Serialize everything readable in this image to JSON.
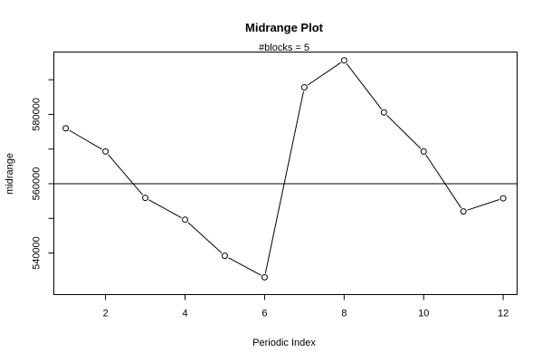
{
  "chart_data": {
    "type": "line",
    "title": "Midrange Plot",
    "subtitle": "#blocks =  5",
    "xlabel": "Periodic Index",
    "ylabel": "midrange",
    "x": [
      1,
      2,
      3,
      4,
      5,
      6,
      7,
      8,
      9,
      10,
      11,
      12
    ],
    "series": [
      {
        "values": [
          576000,
          569300,
          555900,
          549600,
          539200,
          533000,
          587800,
          595600,
          580600,
          569300,
          552000,
          555800
        ]
      }
    ],
    "reference_line": 560000,
    "xlim": [
      0.7,
      12.35
    ],
    "ylim": [
      528000,
      598000
    ],
    "xticks": [
      2,
      4,
      6,
      8,
      10,
      12
    ],
    "yticks": [
      540000,
      560000,
      580000
    ],
    "grid": false,
    "legend": "none",
    "marker": "open-circle",
    "line_color": "#000000"
  }
}
